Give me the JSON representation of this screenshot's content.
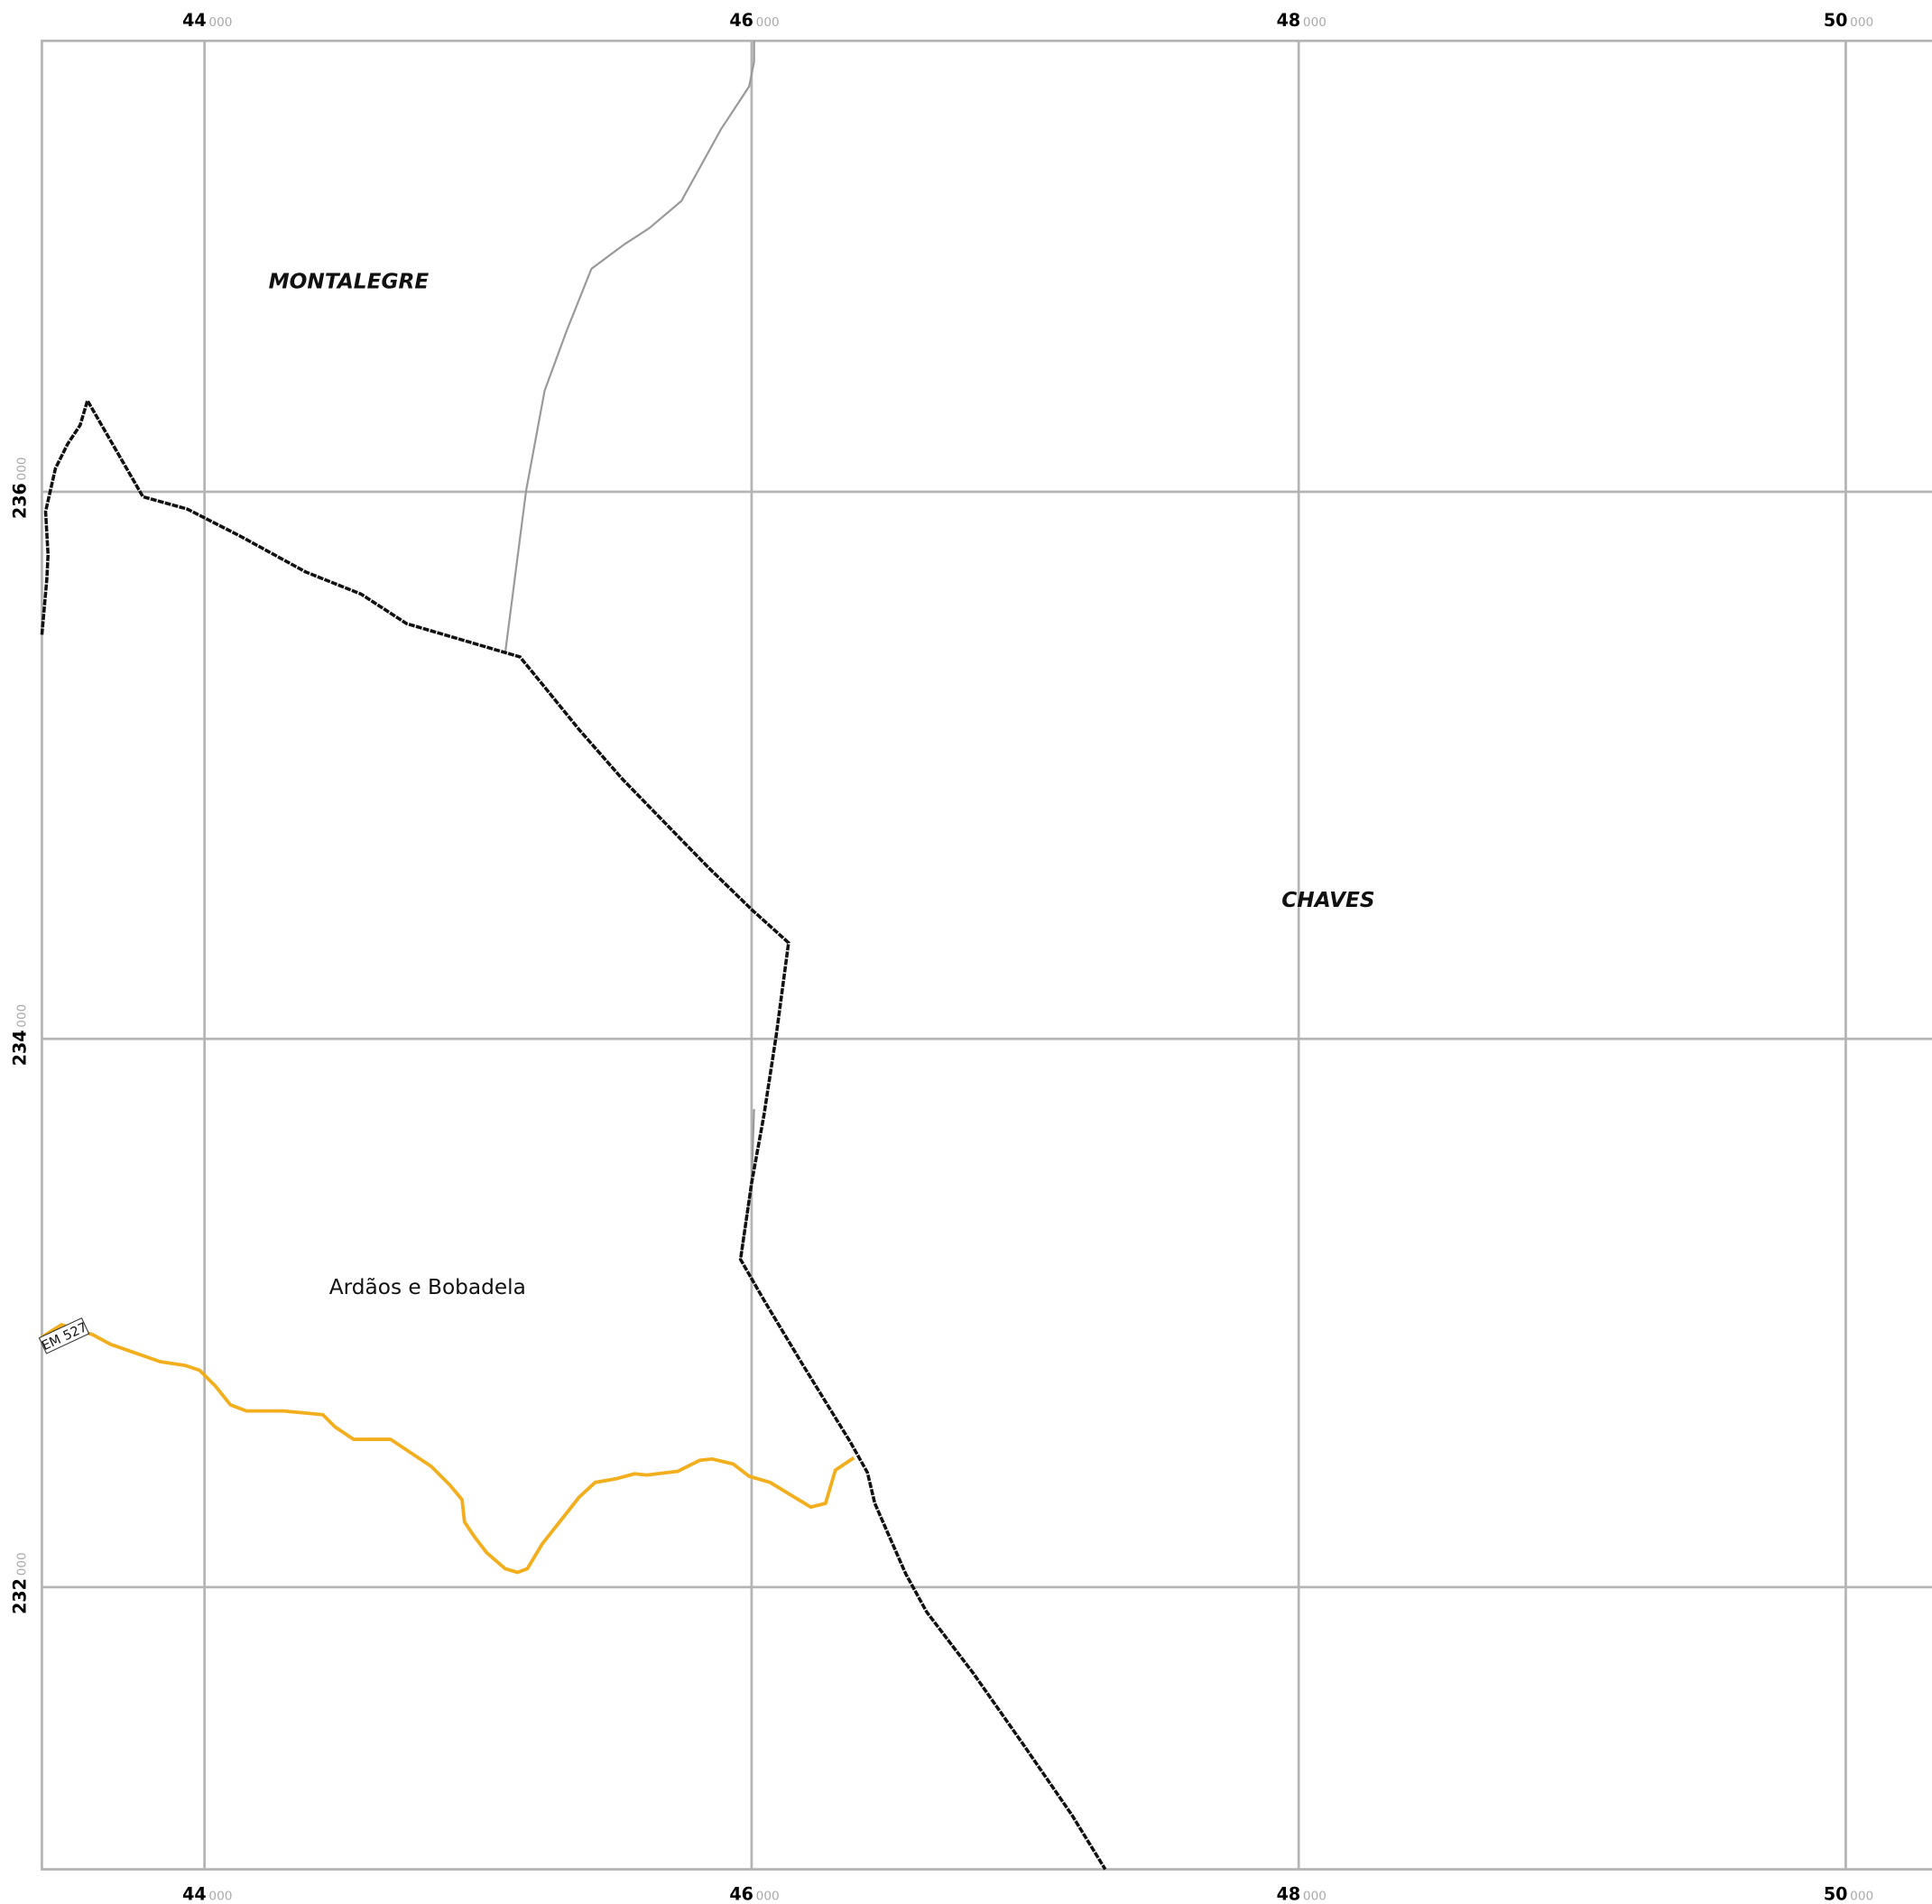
{
  "grid": {
    "x": [
      {
        "major": "44",
        "minor": "000"
      },
      {
        "major": "46",
        "minor": "000"
      },
      {
        "major": "48",
        "minor": "000"
      },
      {
        "major": "50",
        "minor": "000"
      }
    ],
    "y": [
      {
        "major": "236",
        "minor": "000"
      },
      {
        "major": "234",
        "minor": "000"
      },
      {
        "major": "232",
        "minor": "000"
      }
    ]
  },
  "labels": {
    "montalegre": "MONTALEGRE",
    "chaves": "CHAVES",
    "parish": "Ardãos e Bobadela",
    "road": "EM 527"
  }
}
